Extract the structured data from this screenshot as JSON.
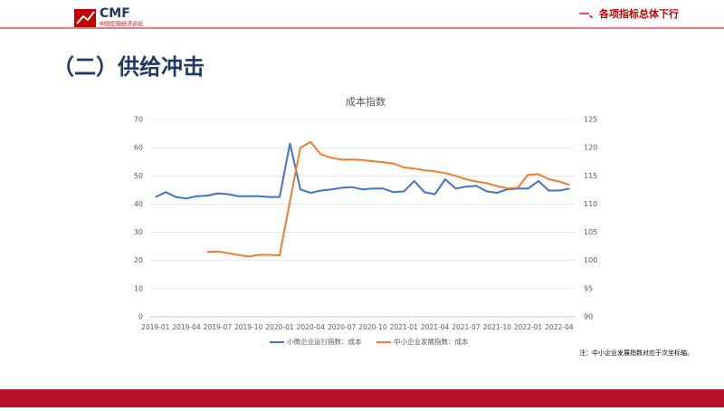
{
  "header": {
    "logo": "CMF",
    "logo_sub": "中国宏观经济论坛",
    "section": "一、各项指标总体下行"
  },
  "title": "（二）供给冲击",
  "note": "注：中小企业发展指数对应于次坐标轴。",
  "chart_data": {
    "type": "line",
    "title": "成本指数",
    "categories": [
      "2019-01",
      null,
      null,
      "2019-04",
      null,
      null,
      "2019-07",
      null,
      null,
      "2019-10",
      null,
      null,
      "2020-01",
      null,
      null,
      "2020-04",
      null,
      null,
      "2020-07",
      null,
      null,
      "2020-10",
      null,
      null,
      "2021-01",
      null,
      null,
      "2021-04",
      null,
      null,
      "2021-07",
      null,
      null,
      "2021-10",
      null,
      null,
      "2022-01",
      null,
      null,
      "2022-04",
      null
    ],
    "series": [
      {
        "name": "小微企业运行指数：成本",
        "color": "#4472c4",
        "values": [
          42.5,
          44.2,
          42.5,
          42,
          42.8,
          43,
          43.8,
          43.5,
          42.8,
          42.8,
          42.8,
          42.5,
          42.5,
          61.5,
          45.2,
          44,
          44.8,
          45.2,
          45.8,
          46,
          45.2,
          45.5,
          45.5,
          44.2,
          44.5,
          48.2,
          44.2,
          43.5,
          48.8,
          45.5,
          46.2,
          46.5,
          44.5,
          44,
          45.2,
          45.5,
          45.5,
          48.2,
          44.8,
          44.8,
          45.5
        ]
      },
      {
        "name": "中小企业发展指数：成本",
        "color": "#ed7d31",
        "axis": "y2",
        "values": [
          null,
          null,
          null,
          null,
          null,
          101.5,
          101.6,
          101.3,
          101,
          100.7,
          101,
          101,
          100.9,
          110.5,
          120,
          121,
          118.8,
          118.2,
          117.9,
          117.9,
          117.8,
          117.6,
          117.4,
          117.2,
          116.5,
          116.3,
          116,
          115.8,
          115.5,
          115,
          114.4,
          114,
          113.7,
          113.2,
          112.8,
          112.9,
          115.2,
          115.3,
          114.4,
          114,
          113.4
        ]
      }
    ],
    "ylim": [
      0,
      70
    ],
    "yticks": [
      0,
      10,
      20,
      30,
      40,
      50,
      60,
      70
    ],
    "y2lim": [
      90,
      125
    ],
    "y2ticks": [
      90,
      95,
      100,
      105,
      110,
      115,
      120,
      125
    ],
    "legend": "bottom"
  }
}
